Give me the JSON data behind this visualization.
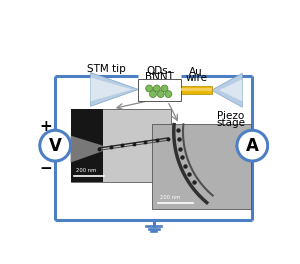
{
  "bg_color": "#ffffff",
  "circuit_color": "#4d7fc4",
  "circuit_linewidth": 2.2,
  "labels": {
    "stm_tip": "STM tip",
    "qds_bnnt_line1": "QDs-",
    "qds_bnnt_line2": "BNNT",
    "au_wire_line1": "Au",
    "au_wire_line2": "wire",
    "piezo_line1": "Piezo",
    "piezo_line2": "stage",
    "plus": "+",
    "minus": "−",
    "voltmeter": "V",
    "ammeter": "A",
    "scalebar1": "200 nm",
    "scalebar2": "200 nm"
  },
  "stm_tip_color_outer": "#b8cce4",
  "stm_tip_color_inner": "#dce6f1",
  "au_wire_color": "#e8b800",
  "au_wire_shine": "#f5d060",
  "box_edge_color": "#555555",
  "qd_color": "#7dba5a",
  "qd_edge_color": "#4a8030",
  "piezo_color_outer": "#b8cce4",
  "piezo_color_inner": "#dce6f1",
  "arrow_color": "#888888",
  "tem1_bg": "#c0c0c0",
  "tem1_black": "#1a1a1a",
  "tem1_tip_gray": "#808080",
  "tem2_bg": "#b8b8b8",
  "nanotube_dark": "#303030",
  "nanotube_mid": "#505050"
}
